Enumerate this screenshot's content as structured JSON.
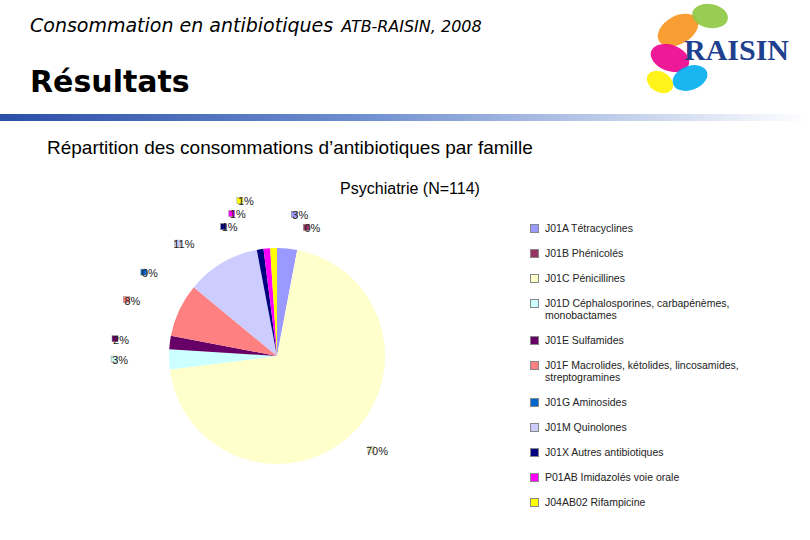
{
  "header": {
    "title": "Consommation en antibiotiques",
    "subtitle": "ATB-RAISIN, 2008",
    "section": "Résultats",
    "logo": "RAISIN"
  },
  "chart_data": {
    "type": "pie",
    "title": "Répartition des consommations d’antibiotiques par famille",
    "subtitle": "Psychiatrie (N=114)",
    "categories": [
      "J01A Tétracyclines",
      "J01B Phénicolés",
      "J01C Pénicillines",
      "J01D Céphalosporines, carbapénèmes, monobactames",
      "J01E Sulfamides",
      "J01F Macrolides, kétolides, lincosamides, streptogramines",
      "J01G Aminosides",
      "J01M Quinolones",
      "J01X Autres antibiotiques",
      "P01AB Imidazolés voie orale",
      "J04AB02 Rifampicine"
    ],
    "values": [
      3,
      0,
      70,
      3,
      2,
      8,
      0,
      11,
      1,
      1,
      1
    ],
    "value_labels": [
      "3%",
      "0%",
      "70%",
      "3%",
      "2%",
      "8%",
      "0%",
      "11%",
      "1%",
      "1%",
      "1%"
    ],
    "colors": [
      "#9999ff",
      "#993366",
      "#ffffcc",
      "#ccffff",
      "#660066",
      "#ff8080",
      "#0066cc",
      "#ccccff",
      "#000080",
      "#ff00ff",
      "#ffff00"
    ],
    "data_labels": true,
    "legend": "right"
  }
}
